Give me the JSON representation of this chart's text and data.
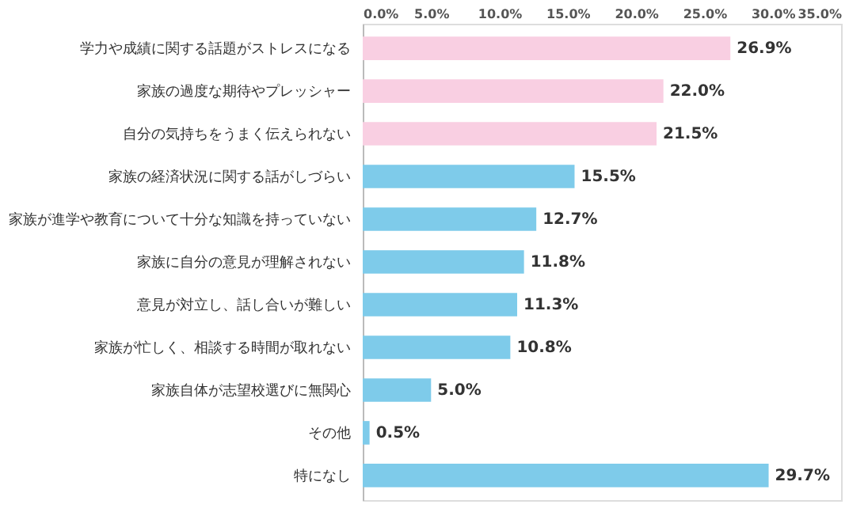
{
  "chart_data": {
    "type": "bar",
    "orientation": "horizontal",
    "categories": [
      "学力や成績に関する話題がストレスになる",
      "家族の過度な期待やプレッシャー",
      "自分の気持ちをうまく伝えられない",
      "家族の経済状況に関する話がしづらい",
      "家族が進学や教育について十分な知識を持っていない",
      "家族に自分の意見が理解されない",
      "意見が対立し、話し合いが難しい",
      "家族が忙しく、相談する時間が取れない",
      "家族自体が志望校選びに無関心",
      "その他",
      "特になし"
    ],
    "values": [
      26.9,
      22.0,
      21.5,
      15.5,
      12.7,
      11.8,
      11.3,
      10.8,
      5.0,
      0.5,
      29.7
    ],
    "colors": [
      "#f9cfe2",
      "#f9cfe2",
      "#f9cfe2",
      "#7ecbea",
      "#7ecbea",
      "#7ecbea",
      "#7ecbea",
      "#7ecbea",
      "#7ecbea",
      "#7ecbea",
      "#7ecbea"
    ],
    "value_labels": [
      "26.9%",
      "22.0%",
      "21.5%",
      "15.5%",
      "12.7%",
      "11.8%",
      "11.3%",
      "10.8%",
      "5.0%",
      "0.5%",
      "29.7%"
    ],
    "xlim": [
      0,
      35
    ],
    "xticks": [
      {
        "value": 0,
        "label": "0.0%"
      },
      {
        "value": 5,
        "label": "5.0%"
      },
      {
        "value": 10,
        "label": "10.0%"
      },
      {
        "value": 15,
        "label": "15.0%"
      },
      {
        "value": 20,
        "label": "20.0%"
      },
      {
        "value": 25,
        "label": "25.0%"
      },
      {
        "value": 30,
        "label": "30.0%"
      },
      {
        "value": 35,
        "label": "35.0%"
      }
    ],
    "grid": false,
    "legend": false
  }
}
